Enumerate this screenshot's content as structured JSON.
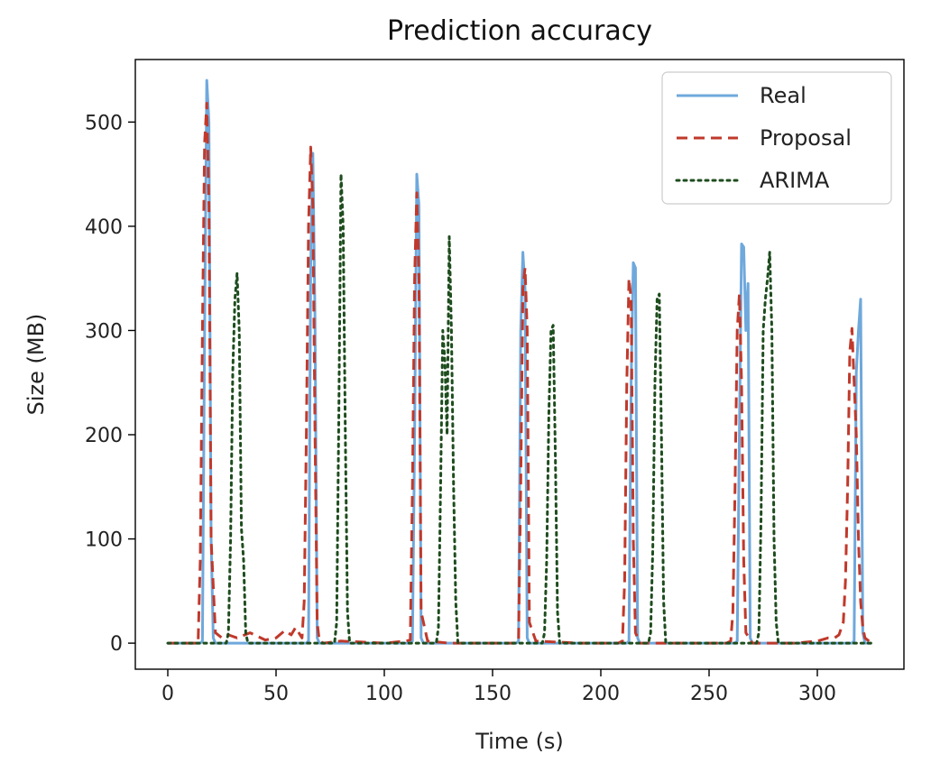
{
  "chart_data": {
    "type": "line",
    "title": "Prediction accuracy",
    "xlabel": "Time (s)",
    "ylabel": "Size (MB)",
    "xlim": [
      -15,
      340
    ],
    "ylim": [
      -25,
      560
    ],
    "xticks": [
      0,
      50,
      100,
      150,
      200,
      250,
      300
    ],
    "yticks": [
      0,
      100,
      200,
      300,
      400,
      500
    ],
    "grid": false,
    "legend_position": "top-right",
    "series": [
      {
        "name": "Real",
        "color": "#6fa8dc",
        "style": "solid",
        "x": [
          0,
          15,
          16,
          17,
          18,
          19,
          20,
          21,
          22,
          23,
          64,
          65,
          66,
          67,
          68,
          69,
          70,
          112,
          113,
          114,
          115,
          116,
          117,
          118,
          161,
          162,
          163,
          164,
          165,
          166,
          167,
          212,
          213,
          214,
          215,
          216,
          217,
          218,
          262,
          263,
          264,
          265,
          266,
          267,
          268,
          269,
          270,
          316,
          317,
          318,
          319,
          320,
          321,
          322,
          325
        ],
        "y": [
          0,
          0,
          2,
          300,
          540,
          500,
          100,
          5,
          0,
          0,
          0,
          2,
          360,
          470,
          310,
          5,
          0,
          0,
          2,
          200,
          450,
          420,
          5,
          0,
          0,
          2,
          300,
          375,
          340,
          5,
          0,
          0,
          2,
          250,
          365,
          360,
          5,
          0,
          0,
          2,
          200,
          383,
          380,
          300,
          345,
          5,
          0,
          0,
          2,
          260,
          300,
          330,
          10,
          0,
          0
        ]
      },
      {
        "name": "Proposal",
        "color": "#c0392b",
        "style": "dashed",
        "x": [
          0,
          12,
          14,
          15,
          16,
          17,
          18,
          19,
          20,
          22,
          25,
          28,
          32,
          38,
          45,
          50,
          54,
          57,
          59,
          62,
          63,
          64,
          65,
          66,
          67,
          68,
          69,
          70,
          72,
          80,
          100,
          110,
          112,
          113,
          114,
          115,
          116,
          117,
          120,
          130,
          150,
          160,
          162,
          163,
          164,
          165,
          166,
          167,
          170,
          190,
          208,
          210,
          211,
          212,
          213,
          214,
          215,
          216,
          218,
          230,
          250,
          258,
          260,
          261,
          262,
          263,
          264,
          265,
          266,
          267,
          270,
          290,
          300,
          305,
          308,
          310,
          312,
          313,
          314,
          315,
          316,
          317,
          318,
          319,
          320,
          321,
          322,
          325
        ],
        "y": [
          0,
          0,
          0,
          80,
          300,
          480,
          518,
          420,
          100,
          10,
          5,
          8,
          5,
          10,
          3,
          5,
          12,
          8,
          15,
          5,
          40,
          200,
          400,
          476,
          420,
          200,
          20,
          2,
          0,
          2,
          0,
          2,
          3,
          150,
          350,
          432,
          350,
          30,
          2,
          0,
          0,
          0,
          2,
          150,
          340,
          360,
          300,
          20,
          2,
          0,
          0,
          2,
          60,
          250,
          350,
          330,
          100,
          10,
          0,
          0,
          0,
          0,
          2,
          30,
          150,
          300,
          335,
          250,
          80,
          10,
          0,
          0,
          2,
          5,
          5,
          8,
          20,
          60,
          150,
          280,
          302,
          250,
          200,
          100,
          40,
          15,
          5,
          0
        ]
      },
      {
        "name": "ARIMA",
        "color": "#1e4d1e",
        "style": "dotted",
        "x": [
          0,
          27,
          28,
          29,
          30,
          31,
          32,
          33,
          34,
          35,
          36,
          37,
          77,
          78,
          79,
          80,
          81,
          82,
          83,
          84,
          124,
          125,
          126,
          127,
          128,
          129,
          130,
          131,
          132,
          133,
          134,
          173,
          174,
          175,
          176,
          177,
          178,
          179,
          180,
          181,
          222,
          223,
          224,
          225,
          226,
          227,
          228,
          229,
          230,
          272,
          273,
          274,
          275,
          276,
          277,
          278,
          279,
          280,
          281,
          282,
          325
        ],
        "y": [
          0,
          0,
          10,
          100,
          260,
          330,
          355,
          300,
          110,
          80,
          10,
          0,
          0,
          20,
          220,
          450,
          400,
          200,
          30,
          0,
          0,
          15,
          150,
          300,
          270,
          200,
          390,
          300,
          150,
          40,
          0,
          0,
          10,
          80,
          220,
          300,
          305,
          180,
          30,
          0,
          0,
          10,
          90,
          250,
          330,
          335,
          200,
          40,
          0,
          0,
          10,
          120,
          300,
          330,
          350,
          375,
          300,
          100,
          20,
          0,
          0
        ]
      }
    ]
  }
}
